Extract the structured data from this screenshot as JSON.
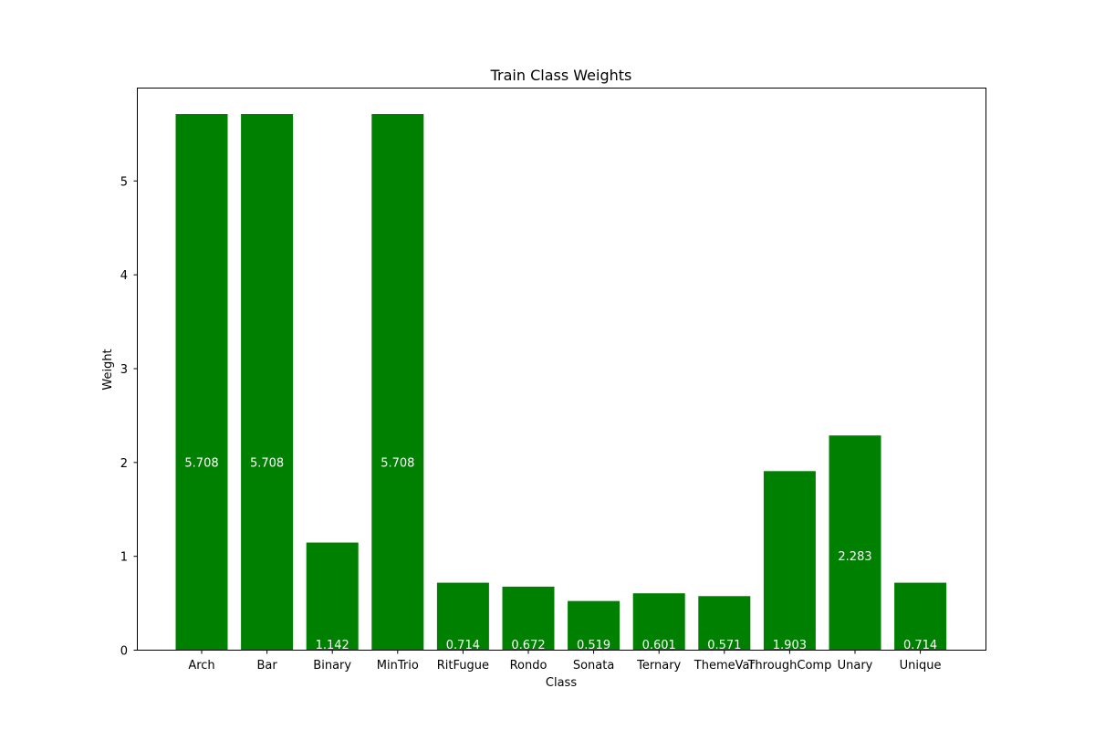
{
  "chart_data": {
    "type": "bar",
    "title": "Train Class Weights",
    "xlabel": "Class",
    "ylabel": "Weight",
    "categories": [
      "Arch",
      "Bar",
      "Binary",
      "MinTrio",
      "RitFugue",
      "Rondo",
      "Sonata",
      "Ternary",
      "ThemeVar",
      "ThroughComp",
      "Unary",
      "Unique"
    ],
    "values": [
      5.708,
      5.708,
      1.142,
      5.708,
      0.714,
      0.672,
      0.519,
      0.601,
      0.571,
      1.903,
      2.283,
      0.714
    ],
    "value_labels": [
      "5.708",
      "5.708",
      "1.142",
      "5.708",
      "0.714",
      "0.672",
      "0.519",
      "0.601",
      "0.571",
      "1.903",
      "2.283",
      "0.714"
    ],
    "yticks": [
      0,
      1,
      2,
      3,
      4,
      5
    ],
    "ytick_labels": [
      "0",
      "1",
      "2",
      "3",
      "4",
      "5"
    ],
    "ylim": [
      0,
      5.708
    ],
    "bar_color": "#008000",
    "label_color": "#ffffff",
    "grid": false,
    "legend": "none"
  }
}
